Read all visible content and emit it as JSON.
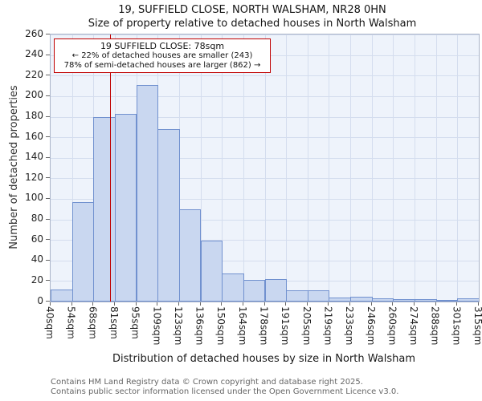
{
  "chart_data": {
    "type": "bar",
    "title": "19, SUFFIELD CLOSE, NORTH WALSHAM, NR28 0HN",
    "subtitle": "Size of property relative to detached houses in North Walsham",
    "xlabel": "Distribution of detached houses by size in North Walsham",
    "ylabel": "Number of detached properties",
    "bin_labels": [
      "40sqm",
      "54sqm",
      "68sqm",
      "81sqm",
      "95sqm",
      "109sqm",
      "123sqm",
      "136sqm",
      "150sqm",
      "164sqm",
      "178sqm",
      "191sqm",
      "205sqm",
      "219sqm",
      "233sqm",
      "246sqm",
      "260sqm",
      "274sqm",
      "288sqm",
      "301sqm",
      "315sqm"
    ],
    "values": [
      12,
      97,
      180,
      183,
      211,
      168,
      90,
      59,
      27,
      21,
      22,
      11,
      11,
      4,
      5,
      3,
      2,
      2,
      1,
      3
    ],
    "ylim": [
      0,
      260
    ],
    "ytick_step": 20,
    "grid": true,
    "legend": "none",
    "marker": {
      "value": 78,
      "bin_index": 2,
      "bin_start": 68,
      "bin_end": 81,
      "label": "78sqm"
    },
    "colors": {
      "bar_fill": "#c9d7f0",
      "bar_border": "#7191cf",
      "marker": "#c00000",
      "grid": "#d4ddee",
      "plot_bg": "#eef3fb"
    }
  },
  "annotation": {
    "line1": "19 SUFFIELD CLOSE: 78sqm",
    "line2": "← 22% of detached houses are smaller (243)",
    "line3": "78% of semi-detached houses are larger (862) →"
  },
  "footer": {
    "line1": "Contains HM Land Registry data © Crown copyright and database right 2025.",
    "line2": "Contains public sector information licensed under the Open Government Licence v3.0."
  }
}
